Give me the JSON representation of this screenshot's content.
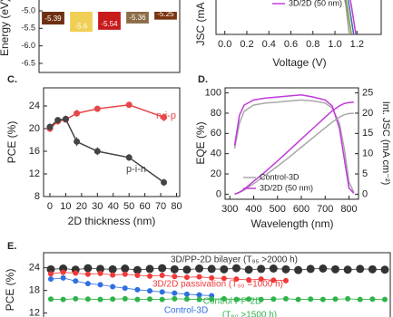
{
  "chart_data": [
    {
      "type": "bar",
      "y_label": "Energy (eV)",
      "values": [
        -5.39,
        -5.6,
        -5.54,
        -5.36,
        -5.25
      ],
      "colors": [
        "#6e3012",
        "#f0cf55",
        "#c8191b",
        "#8c6d48",
        "#7a3510"
      ],
      "ylim": [
        -6.76,
        -4.56
      ],
      "yticks": [
        {
          "value": -5,
          "label": "-5.0"
        },
        -5.5,
        {
          "value": -6,
          "label": "-6.0"
        },
        -6.5
      ]
    },
    {
      "type": "line",
      "x_label": "Voltage (V)",
      "y_label": "JSC (mA cm⁻²)",
      "xlim": [
        -0.08,
        1.42
      ],
      "ylim": [
        0,
        25
      ],
      "xticks": [
        {
          "value": 0,
          "label": "0.0"
        },
        0.2,
        0.4,
        0.6,
        0.8,
        {
          "value": 1,
          "label": "1.0"
        },
        1.2
      ],
      "series": [
        {
          "color": "#9a9a9a",
          "x": [
            0,
            0.6,
            0.9,
            1.0,
            1.05,
            1.1,
            1.13
          ],
          "values": [
            23,
            22.8,
            22,
            20,
            16,
            8,
            0
          ]
        },
        {
          "color": "#7a9a3a",
          "x": [
            0,
            0.6,
            0.9,
            1.0,
            1.06,
            1.11,
            1.15
          ],
          "values": [
            23,
            22.8,
            22,
            20.5,
            16,
            8,
            0
          ]
        },
        {
          "color": "#3d6ab0",
          "x": [
            0,
            0.6,
            0.9,
            1.02,
            1.08,
            1.13,
            1.17
          ],
          "values": [
            23,
            22.8,
            22,
            20.5,
            16,
            8,
            0
          ]
        },
        {
          "name": "3D/2D (50 nm)",
          "color": "#c03ad8",
          "x": [
            0,
            0.6,
            0.9,
            1.03,
            1.1,
            1.15,
            1.19
          ],
          "values": [
            23.5,
            23.2,
            22.5,
            21,
            16,
            8,
            0
          ]
        }
      ]
    },
    {
      "type": "line",
      "letter": "C.",
      "x_label": "2D thickness (nm)",
      "y_label": "PCE (%)",
      "xlim": [
        -4,
        82
      ],
      "ylim": [
        8,
        27.2
      ],
      "xticks": [
        0,
        10,
        20,
        30,
        40,
        50,
        60,
        70,
        80
      ],
      "yticks": [
        8,
        12,
        16,
        20,
        24
      ],
      "x": [
        0,
        5,
        10,
        17,
        30,
        50,
        72
      ],
      "series": [
        {
          "name": "n-i-p",
          "color": "#e8474a",
          "values": [
            20.0,
            21.3,
            21.6,
            22.7,
            23.5,
            24.2,
            22.0
          ],
          "errors": [
            0.6,
            0.6,
            0.5,
            0.6,
            0.5,
            0.5,
            0.7
          ]
        },
        {
          "name": "p-i-n",
          "color": "#444444",
          "values": [
            20.3,
            21.5,
            21.7,
            17.7,
            16.0,
            14.9,
            10.5
          ],
          "errors": [
            0.6,
            0.5,
            0.6,
            0.8,
            0.7,
            0.6,
            0.6
          ]
        }
      ]
    },
    {
      "type": "line",
      "letter": "D.",
      "x_label": "Wavelength (nm)",
      "y_label": "EQE (%)",
      "y2_label": "Int. JSC (mA cm⁻²)",
      "xlim": [
        280,
        840
      ],
      "ylim": [
        -5,
        105
      ],
      "y2lim": [
        -1.25,
        26.25
      ],
      "xticks": [
        300,
        400,
        500,
        600,
        700,
        800
      ],
      "yticks": [
        0,
        20,
        40,
        60,
        80,
        100
      ],
      "y2ticks": [
        0,
        5,
        10,
        15,
        20,
        25
      ],
      "x": [
        320,
        340,
        360,
        400,
        450,
        500,
        550,
        600,
        650,
        700,
        730,
        760,
        780,
        800,
        820
      ],
      "series": [
        {
          "name": "Control-3D",
          "color": "#a8a8a8",
          "values": [
            45,
            70,
            82,
            88,
            90,
            91,
            92,
            93,
            92,
            90,
            85,
            70,
            45,
            12,
            2
          ]
        },
        {
          "name": "3D/2D (50 nm)",
          "color": "#c03ad8",
          "values": [
            48,
            78,
            88,
            93,
            95,
            96,
            97,
            98,
            96,
            93,
            87,
            65,
            35,
            6,
            1
          ]
        },
        {
          "color": "#a8a8a8",
          "axis": "y2",
          "values": [
            0,
            0.4,
            1.0,
            2.6,
            4.7,
            6.9,
            9.2,
            11.6,
            14.0,
            16.4,
            17.8,
            19.0,
            19.6,
            19.9,
            20.0
          ]
        },
        {
          "color": "#c03ad8",
          "axis": "y2",
          "values": [
            0,
            0.5,
            1.2,
            3.2,
            5.6,
            8.2,
            10.9,
            13.6,
            16.3,
            19.0,
            20.6,
            21.8,
            22.4,
            22.6,
            22.7
          ]
        }
      ]
    },
    {
      "type": "line",
      "letter": "E.",
      "y_label": "PCE (%)",
      "markers": true,
      "ylim": [
        10,
        28
      ],
      "yticks": [
        12,
        18,
        24
      ],
      "annotations": [
        {
          "text": "(T₈₀ >1500 h)",
          "color": "#2fb34a"
        }
      ],
      "series": [
        {
          "name": "3D/PP-2D bilayer (T₉₅ >2000 h)",
          "color": "#333333",
          "values": [
            23.6,
            23.8,
            23.5,
            23.9,
            23.7,
            23.6,
            23.8,
            23.4,
            23.7,
            23.9,
            23.6,
            23.5,
            23.8,
            23.7,
            23.6,
            23.9,
            23.5,
            23.7,
            23.8,
            23.6,
            23.4,
            23.7,
            23.8,
            23.6,
            23.5,
            23.7,
            23.6,
            23.5
          ]
        },
        {
          "name": "3D/2D passivation (T₉₀ =1000 h)",
          "color": "#f03a3a",
          "values": [
            22.4,
            22.8,
            22.6,
            22.3,
            22.5,
            22.1,
            22.3,
            22.0,
            21.8,
            22.0,
            21.7,
            21.5,
            21.6,
            21.3,
            21.2,
            21.0,
            20.8,
            21.0,
            20.7,
            20.6,
            null,
            null,
            null,
            null,
            null,
            null,
            null,
            null
          ]
        },
        {
          "name": "Control-3D",
          "color": "#2f6fe0",
          "values": [
            21.0,
            21.3,
            20.5,
            19.8,
            19.5,
            19.0,
            18.6,
            18.2,
            17.9,
            17.6,
            17.3,
            17.0,
            16.8,
            16.6,
            null,
            null,
            null,
            null,
            null,
            null,
            null,
            null,
            null,
            null,
            null,
            null,
            null,
            null
          ]
        },
        {
          "name": "Control PP-2D",
          "color": "#2fb34a",
          "values": [
            15.7,
            15.6,
            15.8,
            15.7,
            15.6,
            15.7,
            15.8,
            15.6,
            15.7,
            15.6,
            15.8,
            15.7,
            15.6,
            15.7,
            15.8,
            15.6,
            15.7,
            15.6,
            15.7,
            15.8,
            15.6,
            15.7,
            15.6,
            15.7,
            15.8,
            15.6,
            15.7,
            15.6
          ]
        }
      ]
    }
  ]
}
